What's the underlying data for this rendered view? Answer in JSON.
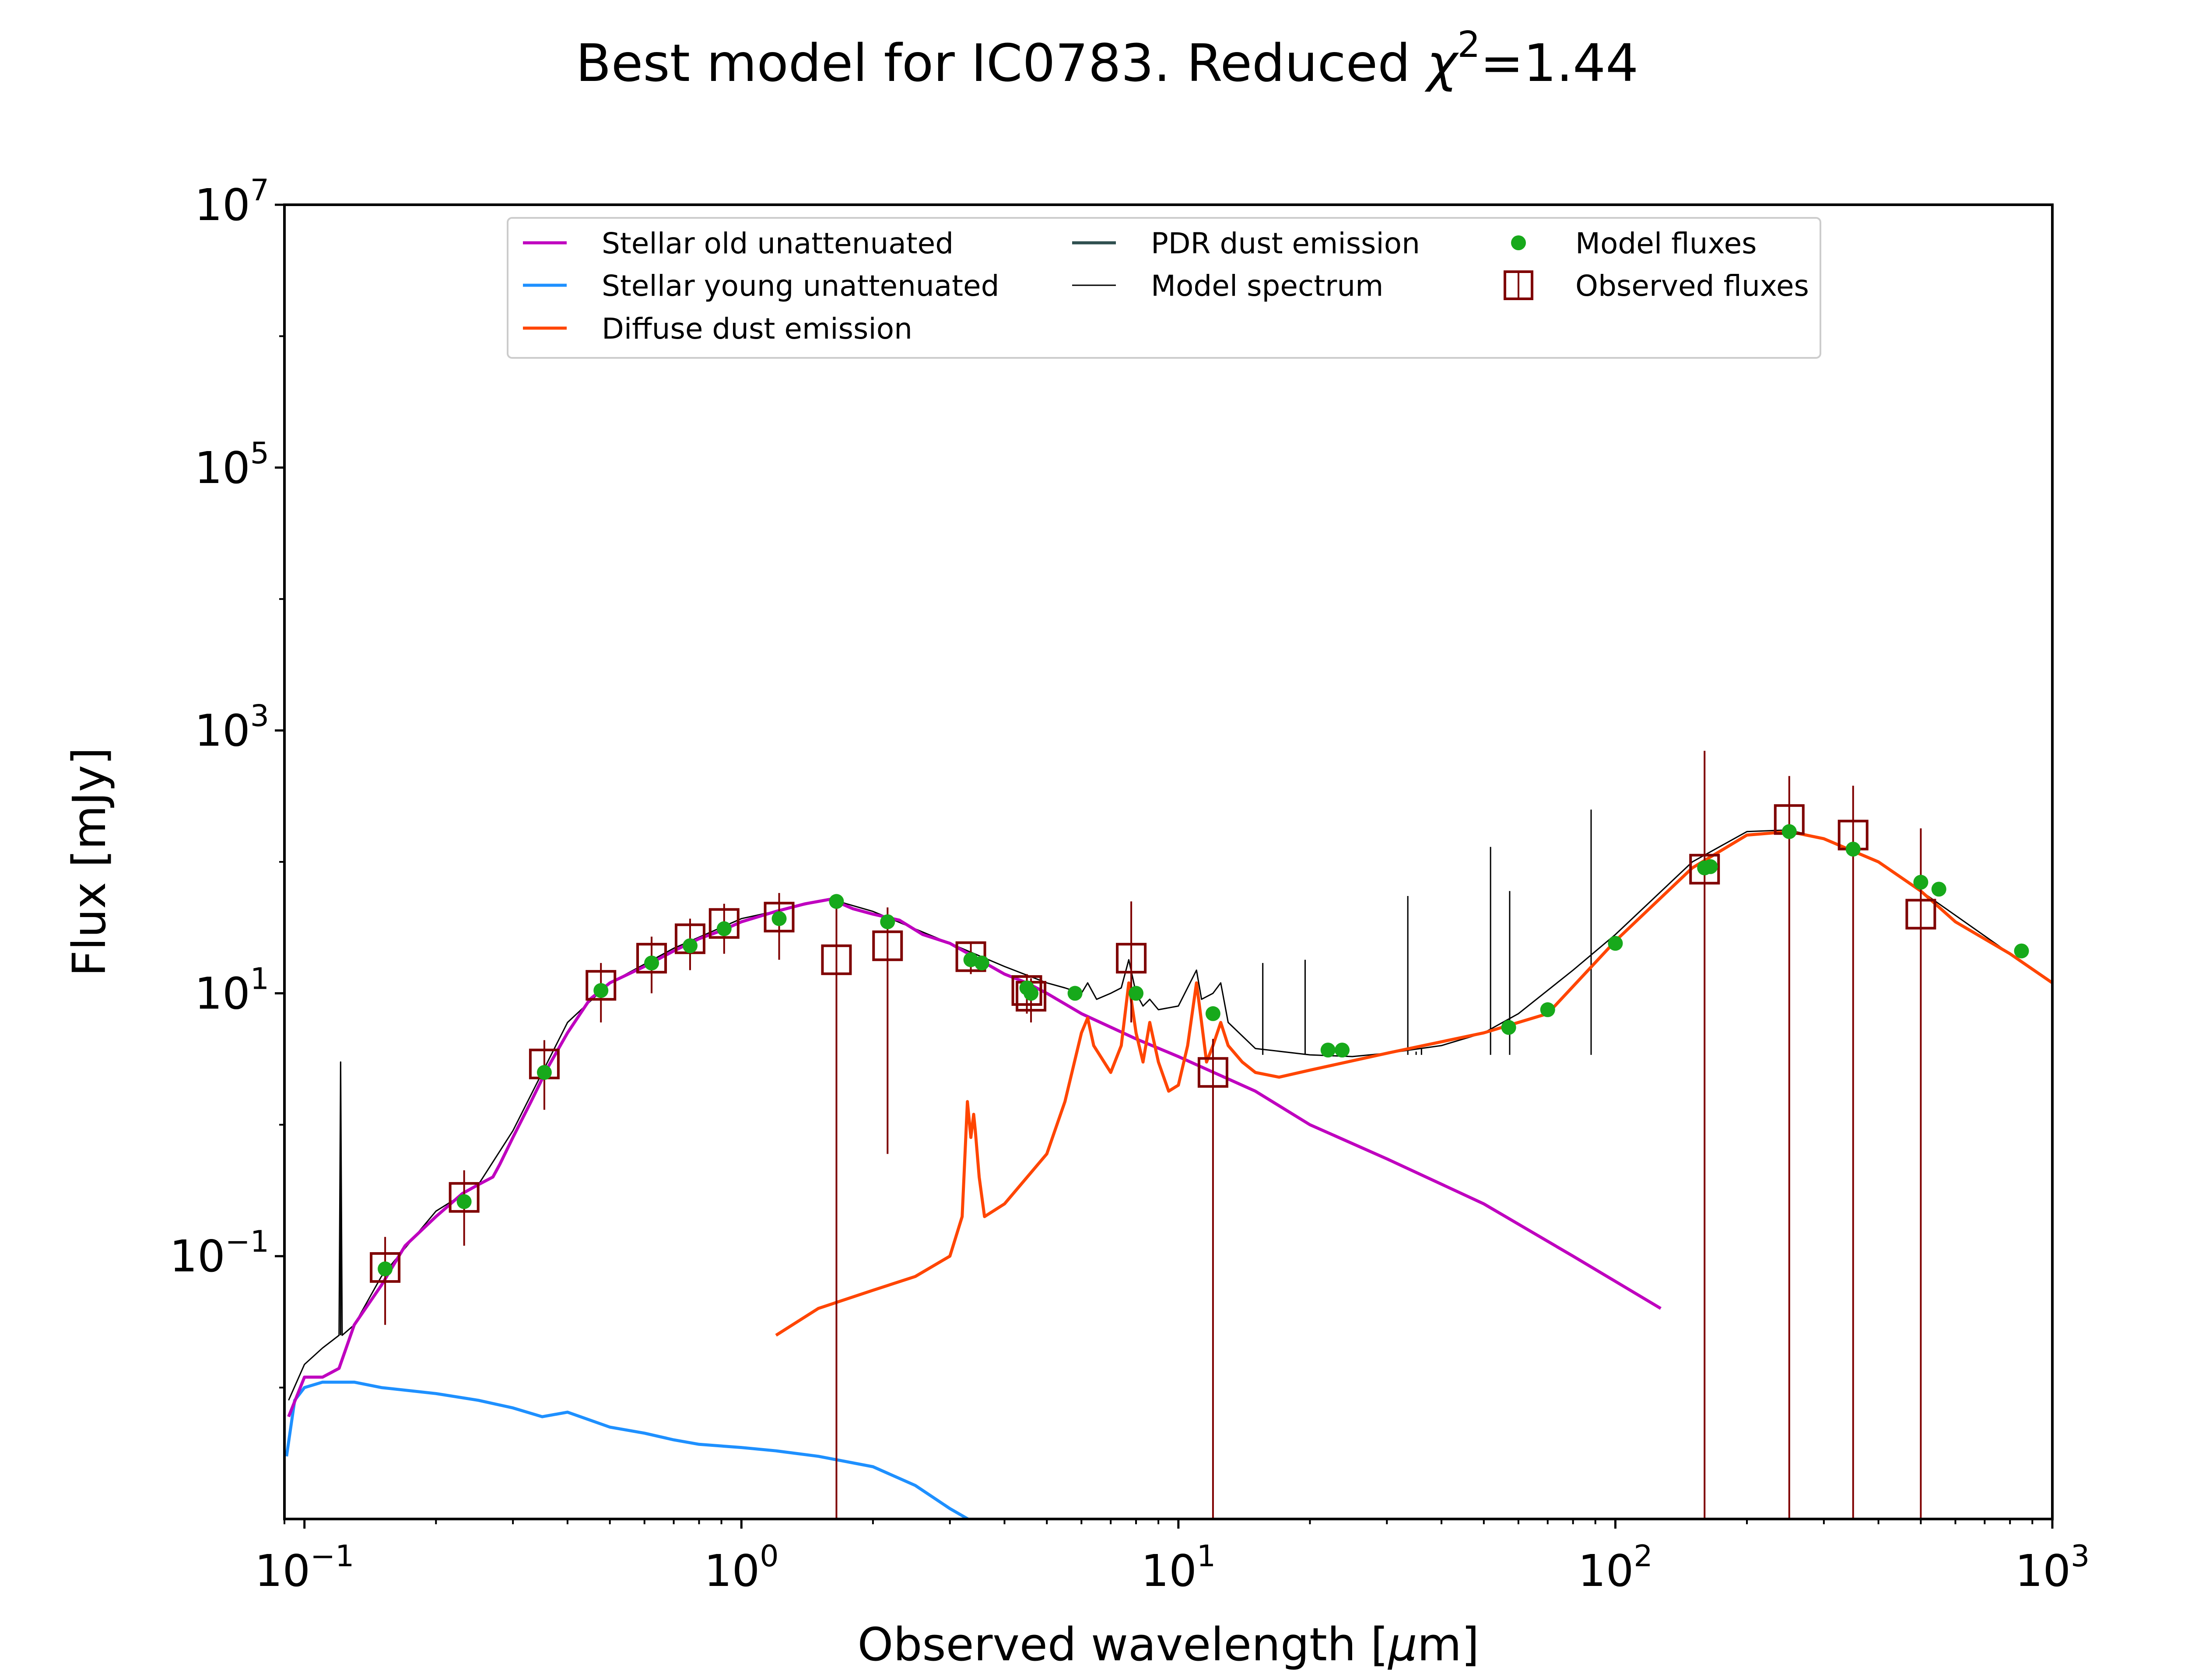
{
  "chart_data": {
    "type": "line",
    "title": {
      "main": "Best model for IC0783. Reduced ",
      "chi": "χ",
      "exp": "2",
      "rest": "=1.44"
    },
    "xlabel": {
      "pre": "Observed wavelength [",
      "mu": "μ",
      "post": "m]"
    },
    "ylabel": "Flux [mJy]",
    "xscale": "log",
    "yscale": "log",
    "xlim": [
      0.09,
      1000
    ],
    "ylim": [
      0.001,
      10000000
    ],
    "x_ticks": [
      {
        "value": 0.1,
        "base": "10",
        "exp": "−1"
      },
      {
        "value": 1,
        "base": "10",
        "exp": "0"
      },
      {
        "value": 10,
        "base": "10",
        "exp": "1"
      },
      {
        "value": 100,
        "base": "10",
        "exp": "2"
      },
      {
        "value": 1000,
        "base": "10",
        "exp": "3"
      }
    ],
    "y_ticks": [
      {
        "value": 0.1,
        "base": "10",
        "exp": "−1"
      },
      {
        "value": 10,
        "base": "10",
        "exp": "1"
      },
      {
        "value": 1000,
        "base": "10",
        "exp": "3"
      },
      {
        "value": 100000,
        "base": "10",
        "exp": "5"
      },
      {
        "value": 10000000,
        "base": "10",
        "exp": "7"
      }
    ],
    "grid": false,
    "legend": {
      "placement": "top-center",
      "columns": [
        [
          {
            "label": "Stellar old unattenuated",
            "kind": "line",
            "series": "old"
          },
          {
            "label": "Stellar young unattenuated",
            "kind": "line",
            "series": "young"
          },
          {
            "label": "Diffuse dust emission",
            "kind": "line",
            "series": "dust"
          }
        ],
        [
          {
            "label": "PDR dust emission",
            "kind": "line",
            "series": "pdr"
          },
          {
            "label": "Model spectrum",
            "kind": "thinline",
            "series": "model"
          }
        ],
        [
          {
            "label": "Model fluxes",
            "kind": "dot",
            "series": "model_fluxes"
          },
          {
            "label": "Observed fluxes",
            "kind": "square",
            "series": "observed"
          }
        ]
      ]
    },
    "colors": {
      "old": "#bf00bf",
      "young": "#1e90ff",
      "dust": "#ff4500",
      "pdr": "#2f4f4f",
      "model": "#000000",
      "model_fluxes": "#17a91b",
      "observed": "#7f0000"
    },
    "series": [
      {
        "id": "old",
        "name": "Stellar old unattenuated",
        "x": [
          0.092,
          0.1,
          0.11,
          0.12,
          0.13,
          0.15,
          0.17,
          0.2,
          0.23,
          0.25,
          0.27,
          0.28,
          0.3,
          0.33,
          0.36,
          0.4,
          0.45,
          0.5,
          0.6,
          0.7,
          0.8,
          0.9,
          1.0,
          1.2,
          1.4,
          1.6,
          1.8,
          2.0,
          2.3,
          2.6,
          3.0,
          3.5,
          4.0,
          4.5,
          5.0,
          6.0,
          8.0,
          10,
          15,
          20,
          30,
          50,
          80,
          127
        ],
        "y": [
          0.006,
          0.012,
          0.012,
          0.014,
          0.03,
          0.06,
          0.12,
          0.2,
          0.3,
          0.35,
          0.4,
          0.5,
          0.8,
          1.5,
          2.7,
          5,
          9,
          12,
          16,
          21,
          26,
          30,
          35,
          42,
          48,
          52,
          44,
          40,
          36,
          28,
          24,
          18,
          14,
          12,
          10,
          7,
          4.5,
          3.3,
          1.8,
          1.0,
          0.55,
          0.25,
          0.1,
          0.04
        ]
      },
      {
        "id": "young",
        "name": "Stellar young unattenuated",
        "x": [
          0.091,
          0.095,
          0.1,
          0.11,
          0.12,
          0.13,
          0.15,
          0.2,
          0.25,
          0.3,
          0.35,
          0.4,
          0.5,
          0.6,
          0.7,
          0.8,
          1.0,
          1.2,
          1.5,
          2.0,
          2.5,
          3.0,
          3.3
        ],
        "y": [
          0.003,
          0.008,
          0.01,
          0.011,
          0.011,
          0.011,
          0.01,
          0.009,
          0.008,
          0.007,
          0.006,
          0.0065,
          0.005,
          0.0045,
          0.004,
          0.0037,
          0.0035,
          0.0033,
          0.003,
          0.0025,
          0.0018,
          0.0012,
          0.001
        ]
      },
      {
        "id": "dust",
        "name": "Diffuse dust emission",
        "x": [
          1.2,
          1.5,
          2.0,
          2.5,
          3.0,
          3.2,
          3.29,
          3.35,
          3.4,
          3.43,
          3.5,
          3.6,
          4.0,
          5.0,
          5.5,
          6.0,
          6.2,
          6.4,
          7.0,
          7.4,
          7.7,
          8.0,
          8.3,
          8.6,
          9.0,
          9.5,
          10,
          10.5,
          11,
          11.3,
          11.6,
          12,
          12.5,
          13,
          14,
          15,
          17,
          20,
          30,
          50,
          70,
          100,
          150,
          200,
          250,
          300,
          400,
          500,
          600,
          800,
          1000
        ],
        "y": [
          0.025,
          0.04,
          0.055,
          0.07,
          0.1,
          0.2,
          1.5,
          0.8,
          1.2,
          0.9,
          0.4,
          0.2,
          0.25,
          0.6,
          1.5,
          5,
          6.5,
          4,
          2.5,
          4,
          12,
          5,
          3,
          6,
          3,
          1.8,
          2,
          4,
          12,
          6,
          3,
          4,
          6,
          4,
          3,
          2.5,
          2.3,
          2.6,
          3.5,
          5,
          7,
          25,
          90,
          160,
          170,
          150,
          100,
          60,
          35,
          20,
          12
        ]
      },
      {
        "id": "pdr",
        "name": "PDR dust emission",
        "x": [],
        "y": []
      },
      {
        "id": "model",
        "name": "Model spectrum",
        "x": [
          0.092,
          0.1,
          0.11,
          0.12,
          0.121,
          0.122,
          0.13,
          0.15,
          0.2,
          0.25,
          0.3,
          0.4,
          0.5,
          0.7,
          1.0,
          1.6,
          2.0,
          3.0,
          4.0,
          5.0,
          5.5,
          6.0,
          6.2,
          6.5,
          7.0,
          7.4,
          7.7,
          8.0,
          8.3,
          8.6,
          9.0,
          10,
          11,
          11.3,
          12,
          12.5,
          13,
          15,
          20,
          25,
          30,
          40,
          50,
          60,
          80,
          100,
          150,
          200,
          250,
          300,
          400,
          500,
          800,
          1000
        ],
        "y": [
          0.008,
          0.015,
          0.02,
          0.025,
          3,
          0.025,
          0.03,
          0.07,
          0.22,
          0.35,
          0.9,
          6,
          12,
          22,
          37,
          52,
          42,
          24,
          16,
          12,
          11,
          10,
          12,
          9,
          10,
          11,
          18,
          10,
          8,
          9,
          7.5,
          8,
          15,
          9,
          10,
          12,
          6,
          3.8,
          3.4,
          3.3,
          3.5,
          4,
          5,
          7,
          15,
          28,
          100,
          170,
          175,
          150,
          100,
          60,
          20,
          12
        ]
      },
      {
        "id": "model_spikes",
        "x": [
          0.121,
          15.6,
          19.5,
          33.5,
          35,
          36,
          51.8,
          57.3,
          88
        ],
        "y": [
          3,
          17,
          18,
          55,
          3.6,
          3.8,
          130,
          60,
          250
        ]
      }
    ],
    "model_fluxes": {
      "x": [
        0.153,
        0.232,
        0.354,
        0.477,
        0.623,
        0.763,
        0.913,
        1.22,
        1.65,
        2.16,
        3.35,
        3.55,
        4.5,
        4.6,
        5.8,
        8.0,
        12,
        22,
        23.7,
        57,
        70,
        100,
        160,
        165,
        250,
        350,
        500,
        550,
        850
      ],
      "y": [
        0.08,
        0.26,
        2.5,
        10.5,
        17,
        23,
        31,
        37,
        50,
        35,
        18,
        17,
        11,
        10,
        10,
        10,
        7,
        3.7,
        3.7,
        5.5,
        7.5,
        24,
        90,
        92,
        170,
        125,
        70,
        62,
        21
      ]
    },
    "observed_fluxes": {
      "x": [
        0.153,
        0.232,
        0.354,
        0.477,
        0.623,
        0.763,
        0.913,
        1.22,
        1.65,
        2.16,
        3.35,
        4.5,
        4.6,
        7.8,
        12,
        160,
        250,
        350,
        500
      ],
      "y": [
        0.082,
        0.28,
        2.9,
        11.5,
        18.5,
        26,
        34,
        38,
        18,
        23,
        19,
        10.5,
        9.5,
        18.5,
        2.5,
        88,
        210,
        160,
        40
      ],
      "err_lo": [
        0.03,
        0.12,
        1.3,
        6,
        10,
        15,
        20,
        18,
        0.001,
        0.6,
        14,
        7,
        6,
        6,
        0.001,
        0.001,
        0.001,
        0.001,
        0.001
      ],
      "err_hi": [
        0.14,
        0.45,
        4.4,
        17,
        27,
        37,
        48,
        58,
        55,
        45,
        24,
        14,
        13,
        50,
        4.5,
        700,
        450,
        380,
        180
      ]
    }
  }
}
